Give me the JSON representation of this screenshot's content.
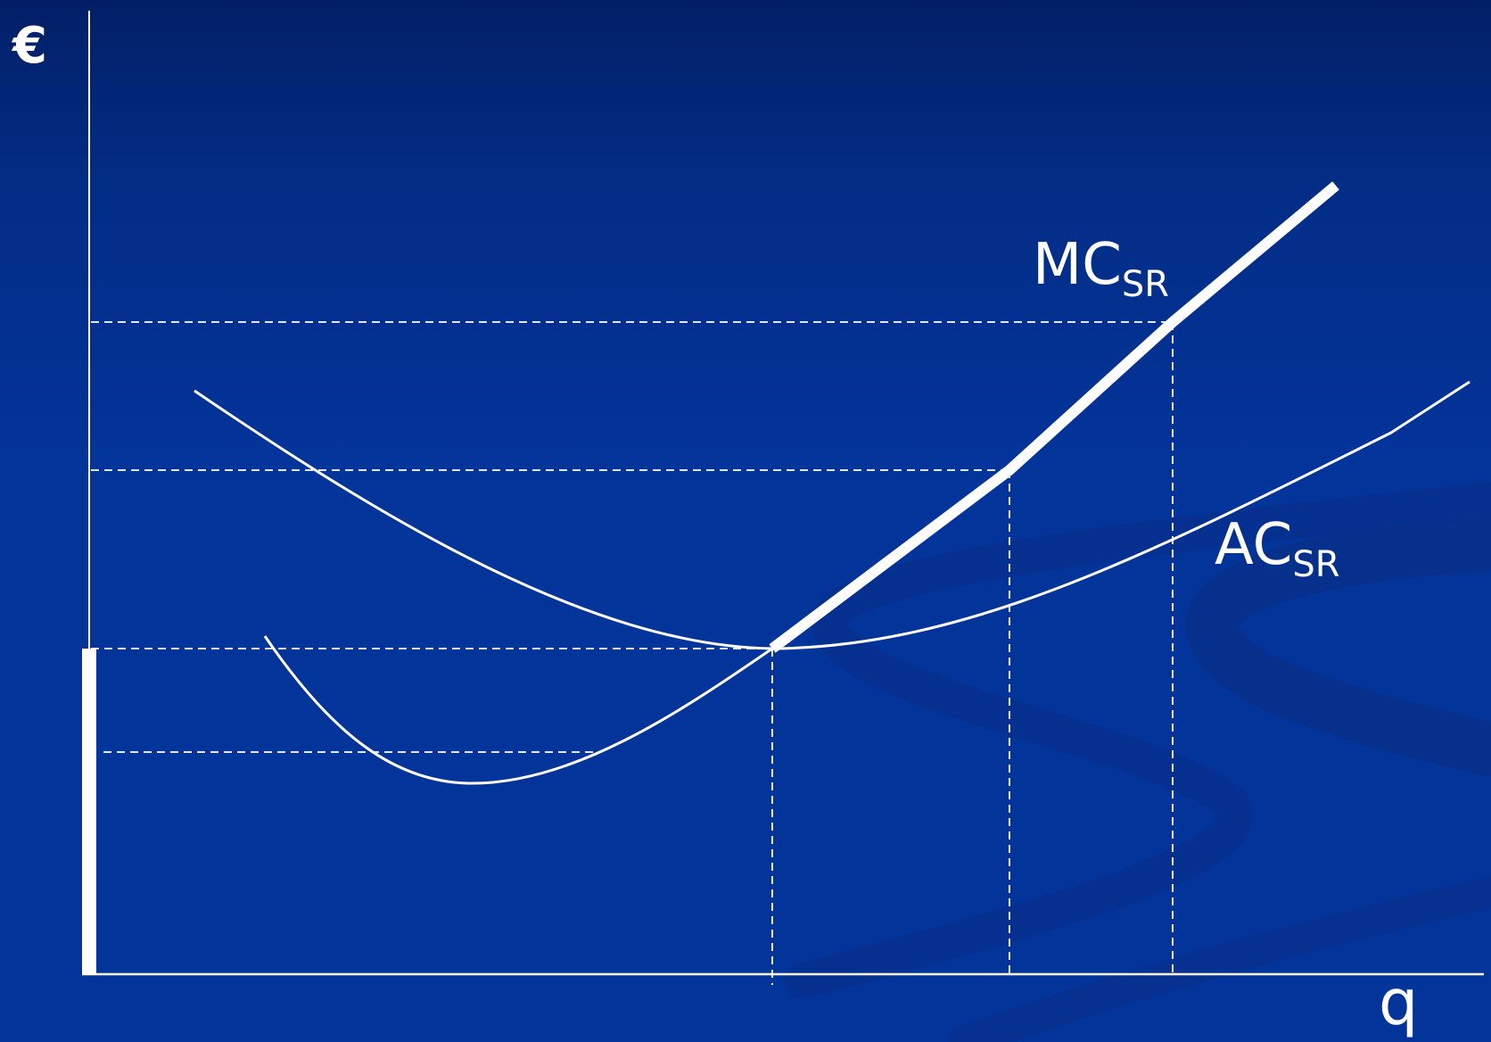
{
  "diagram": {
    "y_axis_label": "€",
    "x_axis_label": "q",
    "curves": {
      "mc": {
        "main": "MC",
        "sub": "SR"
      },
      "ac": {
        "main": "AC",
        "sub": "SR"
      }
    }
  },
  "colors": {
    "background_top": "#021f66",
    "background_main": "#03349a",
    "swirl": "#0a2e86",
    "foreground": "#ffffff"
  }
}
